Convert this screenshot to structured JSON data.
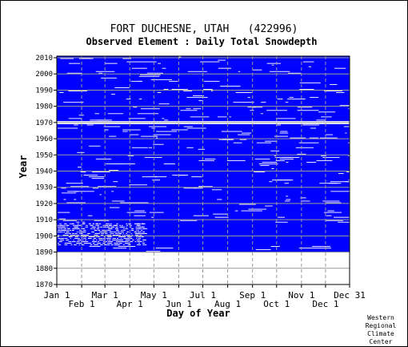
{
  "chart_data": {
    "type": "heatmap",
    "title": "FORT DUCHESNE, UTAH   (422996)",
    "subtitle": "Observed Element : Daily Total Snowdepth",
    "xlabel": "Day of Year",
    "ylabel": "Year",
    "xlim": [
      1,
      366
    ],
    "ylim": [
      1870,
      2011
    ],
    "x_ticks": [
      {
        "label": "Jan 1",
        "day": 1,
        "row": 0
      },
      {
        "label": "Feb 1",
        "day": 32,
        "row": 1
      },
      {
        "label": "Mar 1",
        "day": 61,
        "row": 0
      },
      {
        "label": "Apr 1",
        "day": 92,
        "row": 1
      },
      {
        "label": "May 1",
        "day": 122,
        "row": 0
      },
      {
        "label": "Jun 1",
        "day": 153,
        "row": 1
      },
      {
        "label": "Jul 1",
        "day": 183,
        "row": 0
      },
      {
        "label": "Aug 1",
        "day": 214,
        "row": 1
      },
      {
        "label": "Sep 1",
        "day": 245,
        "row": 0
      },
      {
        "label": "Oct 1",
        "day": 275,
        "row": 1
      },
      {
        "label": "Nov 1",
        "day": 306,
        "row": 0
      },
      {
        "label": "Dec 1",
        "day": 336,
        "row": 1
      },
      {
        "label": "Dec 31",
        "day": 366,
        "row": 0
      }
    ],
    "y_ticks": [
      1870,
      1880,
      1890,
      1900,
      1910,
      1920,
      1930,
      1940,
      1950,
      1960,
      1970,
      1980,
      1990,
      2000,
      2010
    ],
    "grid": true,
    "series": [
      {
        "name": "",
        "color": "#0000ff"
      }
    ],
    "data_years_start": 1890,
    "data_years_end": 2010,
    "years_without_data": [
      1969,
      1970
    ],
    "sparse_data_years": [
      1894,
      1895,
      1896,
      1897,
      1898,
      1899,
      1900,
      1901,
      1902,
      1903,
      1904,
      1905,
      1906,
      1907
    ]
  },
  "credit": [
    "Western",
    "Regional",
    "Climate",
    "Center"
  ]
}
